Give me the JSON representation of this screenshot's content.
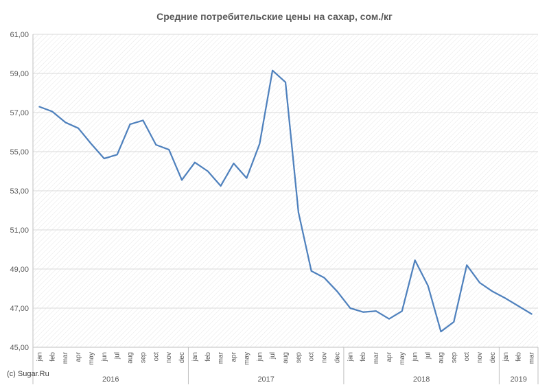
{
  "chart_data": {
    "type": "line",
    "title": "Средние потребительские цены на сахар, сом./кг",
    "xlabel": "",
    "ylabel": "",
    "ylim": [
      45,
      61
    ],
    "yticks": [
      "45,00",
      "47,00",
      "49,00",
      "51,00",
      "53,00",
      "55,00",
      "57,00",
      "59,00",
      "61,00"
    ],
    "grid": true,
    "legend": "none",
    "categories": [
      "jan",
      "feb",
      "mar",
      "apr",
      "may",
      "jun",
      "jul",
      "aug",
      "sep",
      "oct",
      "nov",
      "dec",
      "jan",
      "feb",
      "mar",
      "apr",
      "may",
      "jun",
      "jul",
      "aug",
      "sep",
      "oct",
      "nov",
      "dec",
      "jan",
      "feb",
      "mar",
      "apr",
      "may",
      "jun",
      "jul",
      "aug",
      "sep",
      "oct",
      "nov",
      "dec",
      "jan",
      "feb",
      "mar"
    ],
    "year_groups": [
      {
        "label": "2016",
        "count": 12
      },
      {
        "label": "2017",
        "count": 12
      },
      {
        "label": "2018",
        "count": 12
      },
      {
        "label": "2019",
        "count": 3
      }
    ],
    "series": [
      {
        "color": "#4f81bd",
        "values": [
          57.3,
          57.05,
          56.5,
          56.2,
          55.4,
          54.65,
          54.85,
          56.4,
          56.6,
          55.35,
          55.1,
          53.55,
          54.45,
          54.0,
          53.25,
          54.4,
          53.65,
          55.4,
          59.15,
          58.55,
          51.9,
          48.9,
          48.55,
          47.85,
          47.0,
          46.8,
          46.85,
          46.45,
          46.85,
          49.45,
          48.15,
          45.8,
          46.3,
          49.2,
          48.3,
          47.85,
          47.5,
          47.1,
          46.7
        ]
      }
    ]
  },
  "copyright": "(c) Sugar.Ru"
}
